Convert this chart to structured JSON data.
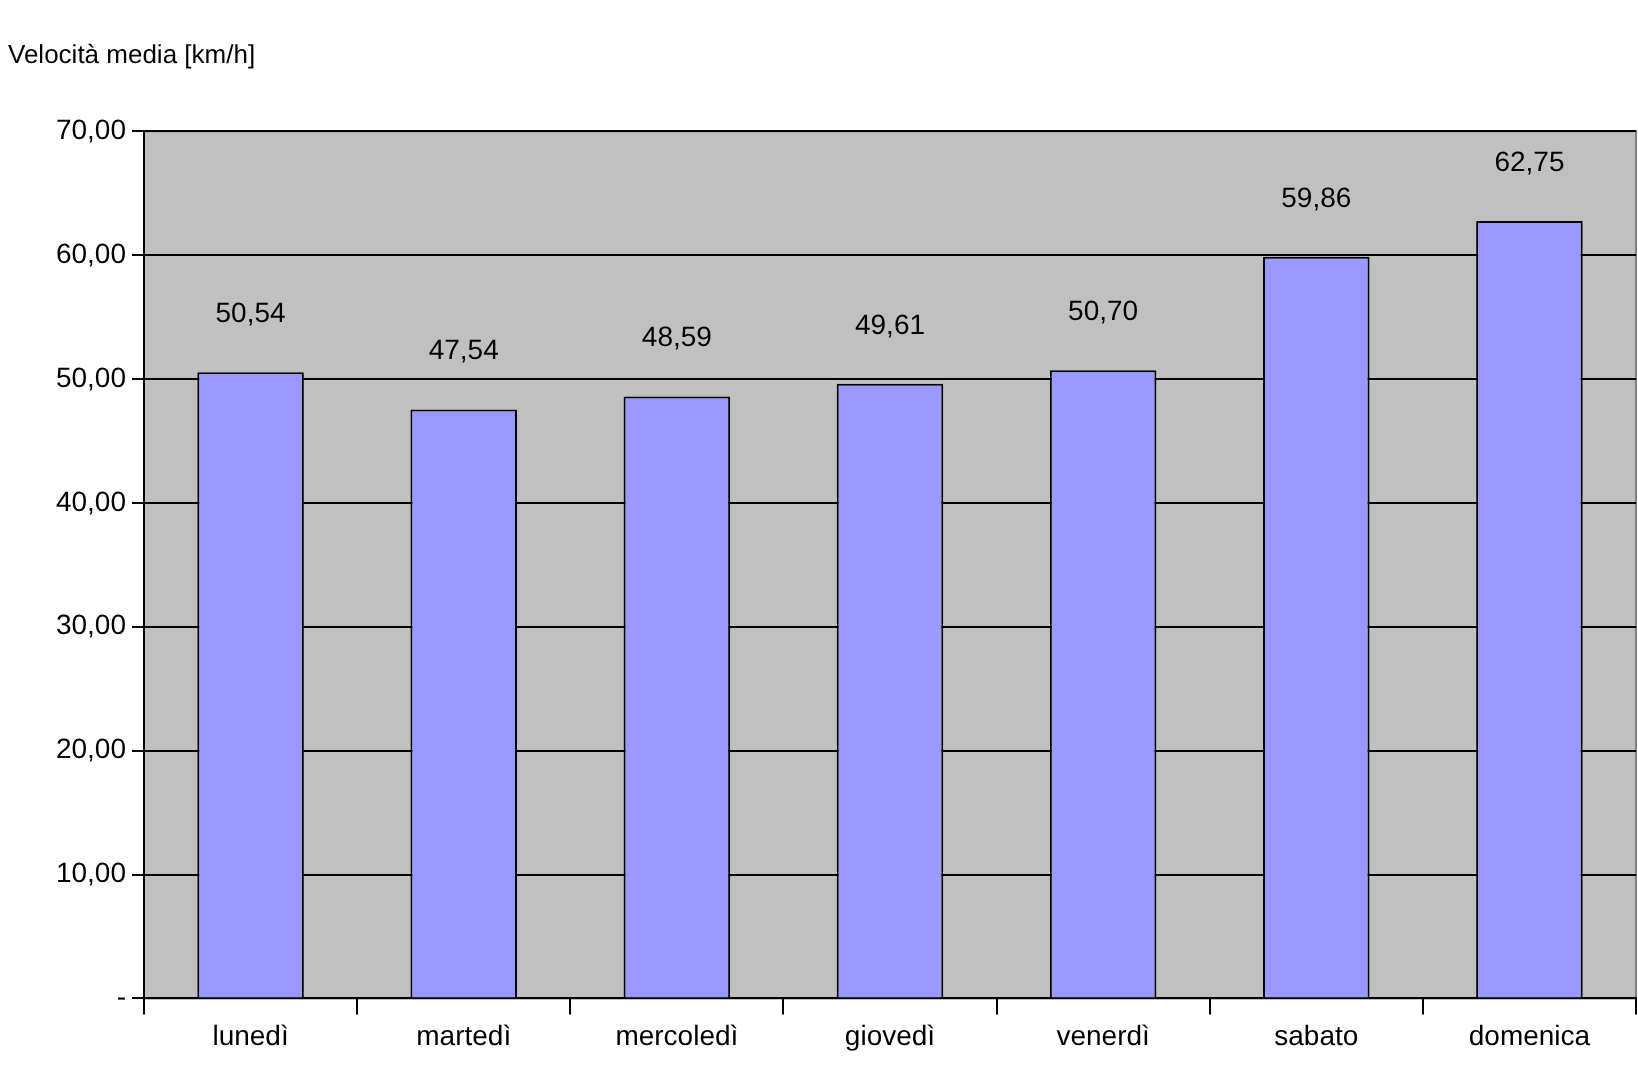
{
  "chart_data": {
    "type": "bar",
    "title": "Velocità media [km/h]",
    "categories": [
      "lunedì",
      "martedì",
      "mercoledì",
      "giovedì",
      "venerdì",
      "sabato",
      "domenica"
    ],
    "values": [
      50.54,
      47.54,
      48.59,
      49.61,
      50.7,
      59.86,
      62.75
    ],
    "value_labels": [
      "50,54",
      "47,54",
      "48,59",
      "49,61",
      "50,70",
      "59,86",
      "62,75"
    ],
    "color": "#9999ff",
    "ylim": [
      0,
      70
    ],
    "yticks": [
      {
        "value": 0,
        "label": "-"
      },
      {
        "value": 10,
        "label": "10,00"
      },
      {
        "value": 20,
        "label": "20,00"
      },
      {
        "value": 30,
        "label": "30,00"
      },
      {
        "value": 40,
        "label": "40,00"
      },
      {
        "value": 50,
        "label": "50,00"
      },
      {
        "value": 60,
        "label": "60,00"
      },
      {
        "value": 70,
        "label": "70,00"
      }
    ],
    "grid": "y",
    "legend": false
  }
}
